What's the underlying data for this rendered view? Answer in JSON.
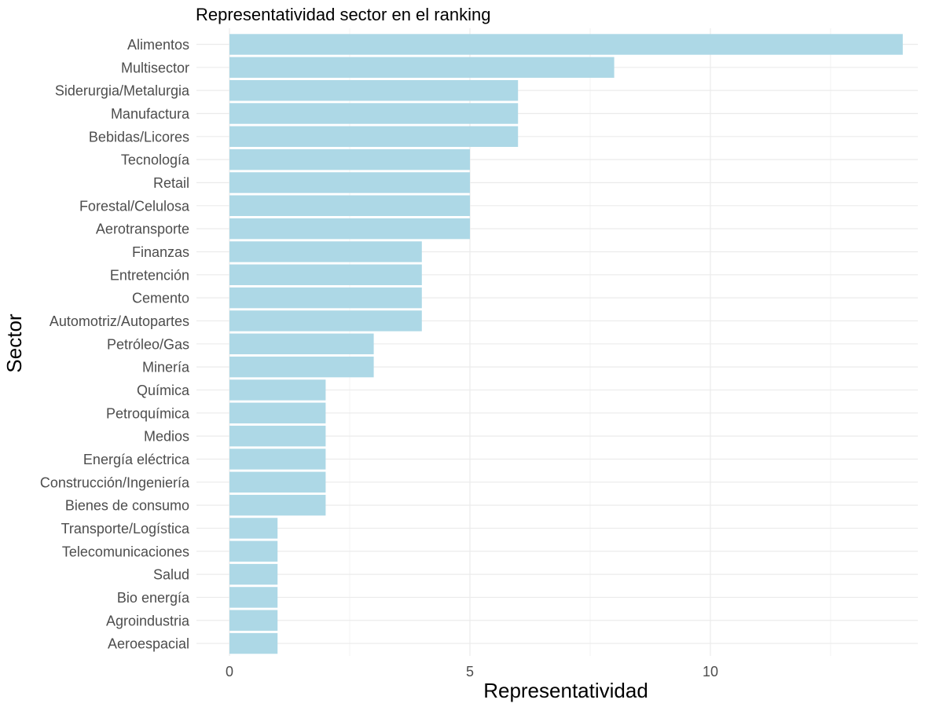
{
  "chart_data": {
    "type": "bar",
    "orientation": "horizontal",
    "title": "Representatividad sector en el ranking",
    "xlabel": "Representatividad",
    "ylabel": "Sector",
    "xlim": [
      0,
      14.5
    ],
    "xticks": [
      0,
      5,
      10
    ],
    "grid": true,
    "bar_color": "#add8e6",
    "categories": [
      "Alimentos",
      "Multisector",
      "Siderurgia/Metalurgia",
      "Manufactura",
      "Bebidas/Licores",
      "Tecnología",
      "Retail",
      "Forestal/Celulosa",
      "Aerotransporte",
      "Finanzas",
      "Entretención",
      "Cemento",
      "Automotriz/Autopartes",
      "Petróleo/Gas",
      "Minería",
      "Química",
      "Petroquímica",
      "Medios",
      "Energía eléctrica",
      "Construcción/Ingeniería",
      "Bienes de consumo",
      "Transporte/Logística",
      "Telecomunicaciones",
      "Salud",
      "Bio energía",
      "Agroindustria",
      "Aeroespacial"
    ],
    "values": [
      14,
      8,
      6,
      6,
      6,
      5,
      5,
      5,
      5,
      4,
      4,
      4,
      4,
      3,
      3,
      2,
      2,
      2,
      2,
      2,
      2,
      1,
      1,
      1,
      1,
      1,
      1
    ]
  }
}
